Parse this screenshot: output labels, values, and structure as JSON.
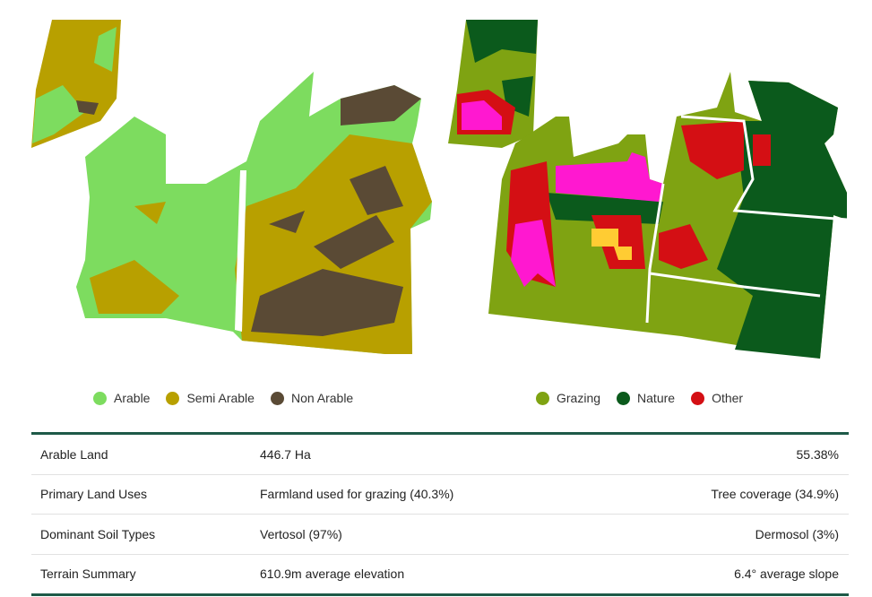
{
  "legends": [
    {
      "items": [
        {
          "label": "Arable",
          "color": "#7ddc5f"
        },
        {
          "label": "Semi Arable",
          "color": "#b8a000"
        },
        {
          "label": "Non Arable",
          "color": "#5a4a35"
        }
      ]
    },
    {
      "items": [
        {
          "label": "Grazing",
          "color": "#7fa312"
        },
        {
          "label": "Nature",
          "color": "#0b5a1c"
        },
        {
          "label": "Other",
          "color": "#d40f14"
        }
      ]
    }
  ],
  "table": {
    "rows": [
      [
        "Arable Land",
        "446.7 Ha",
        "55.38%"
      ],
      [
        "Primary Land Uses",
        "Farmland used for grazing (40.3%)",
        "Tree coverage (34.9%)"
      ],
      [
        "Dominant Soil Types",
        "Vertosol (97%)",
        "Dermosol (3%)"
      ],
      [
        "Terrain Summary",
        "610.9m average elevation",
        "6.4° average slope"
      ]
    ]
  }
}
